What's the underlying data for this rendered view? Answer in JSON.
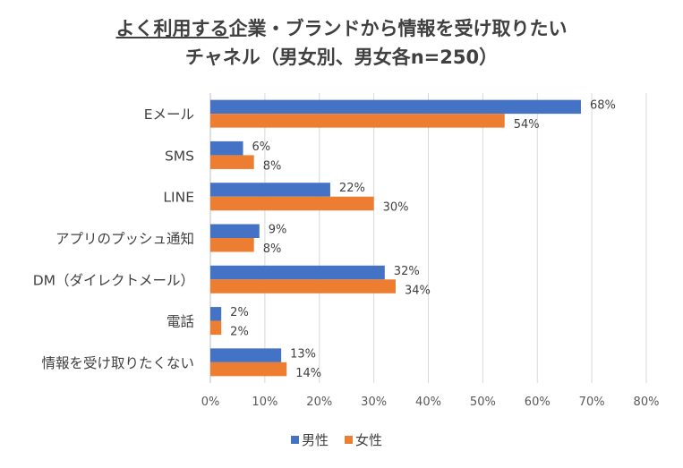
{
  "chart_data": {
    "type": "bar",
    "orientation": "horizontal",
    "title_underlined": "よく利用する",
    "title_rest": "企業・ブランドから情報を受け取りたい",
    "subtitle": "チャネル（男女別、男女各n=250）",
    "categories": [
      "Eメール",
      "SMS",
      "LINE",
      "アプリのプッシュ通知",
      "DM（ダイレクトメール）",
      "電話",
      "情報を受け取りたくない"
    ],
    "series": [
      {
        "name": "男性",
        "color": "#4472C4",
        "values": [
          68,
          6,
          22,
          9,
          32,
          2,
          13
        ],
        "labels": [
          "68%",
          "6%",
          "22%",
          "9%",
          "32%",
          "2%",
          "13%"
        ]
      },
      {
        "name": "女性",
        "color": "#ED7D31",
        "values": [
          54,
          8,
          30,
          8,
          34,
          2,
          14
        ],
        "labels": [
          "54%",
          "8%",
          "30%",
          "8%",
          "34%",
          "2%",
          "14%"
        ]
      }
    ],
    "xlim": [
      0,
      80
    ],
    "xticks": [
      "0%",
      "10%",
      "20%",
      "30%",
      "40%",
      "50%",
      "60%",
      "70%",
      "80%"
    ],
    "grid": true,
    "legend_position": "bottom"
  }
}
